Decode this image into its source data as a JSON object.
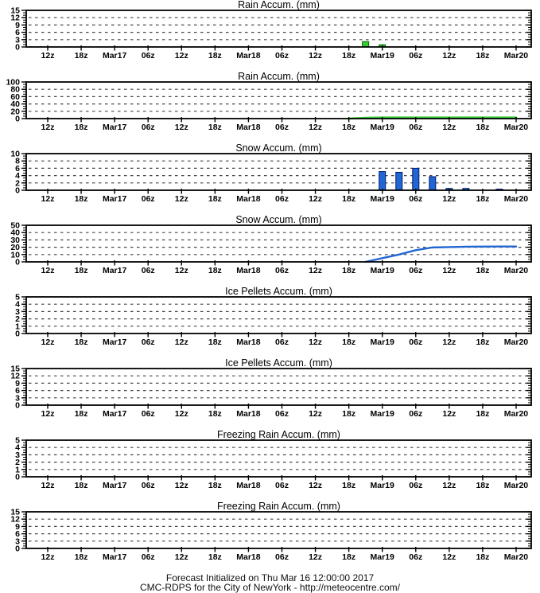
{
  "footer": {
    "line1": "Forecast Initialized on Thu Mar 16 12:00:00 2017",
    "line2": "CMC-RDPS for the City of NewYork - http://meteocentre.com/"
  },
  "x_axis": {
    "labels": [
      "12z",
      "18z",
      "Mar17",
      "06z",
      "12z",
      "18z",
      "Mar18",
      "06z",
      "12z",
      "18z",
      "Mar19",
      "06z",
      "12z",
      "18z",
      "Mar20"
    ],
    "hours_between_labels": 6,
    "start": "12z Thu Mar 16 2017",
    "end": "00z Mon Mar 20 2017"
  },
  "colors": {
    "axis": "#000000",
    "grid": "#444444",
    "rain_fill": "#33cc33",
    "rain_stroke": "#006600",
    "snow_fill": "#2166d2",
    "snow_stroke": "#001a70",
    "ice_fill": "#888888",
    "ice_stroke": "#444444",
    "frz_fill": "#888888",
    "frz_stroke": "#444444"
  },
  "chart_data": [
    {
      "name": "rain-accum-3h",
      "type": "bar",
      "title": "Rain Accum. (mm)",
      "ylim": [
        0,
        15
      ],
      "ytick_step": 3,
      "yticks": [
        0,
        3,
        6,
        9,
        12,
        15
      ],
      "grid": true,
      "color_key": "rain",
      "points": [
        [
          57,
          2.2
        ],
        [
          60,
          0.9
        ]
      ]
    },
    {
      "name": "rain-accum-total",
      "type": "line",
      "title": "Rain Accum. (mm)",
      "ylim": [
        0,
        100
      ],
      "ytick_step": 20,
      "yticks": [
        0,
        20,
        40,
        60,
        80,
        100
      ],
      "grid": true,
      "color_key": "rain",
      "points": [
        [
          54,
          0
        ],
        [
          57,
          2.2
        ],
        [
          60,
          3.1
        ],
        [
          84,
          3.1
        ]
      ]
    },
    {
      "name": "snow-accum-3h",
      "type": "bar",
      "title": "Snow Accum. (mm)",
      "ylim": [
        0,
        10
      ],
      "ytick_step": 2,
      "yticks": [
        0,
        2,
        4,
        6,
        8,
        10
      ],
      "grid": true,
      "color_key": "snow",
      "points": [
        [
          60,
          5.1
        ],
        [
          63,
          4.9
        ],
        [
          66,
          6.0
        ],
        [
          69,
          3.7
        ],
        [
          72,
          0.5
        ],
        [
          75,
          0.5
        ],
        [
          81,
          0.3
        ]
      ]
    },
    {
      "name": "snow-accum-total",
      "type": "line",
      "title": "Snow Accum. (mm)",
      "ylim": [
        0,
        50
      ],
      "ytick_step": 10,
      "yticks": [
        0,
        10,
        20,
        30,
        40,
        50
      ],
      "grid": true,
      "color_key": "snow",
      "points": [
        [
          57,
          0
        ],
        [
          60,
          5.1
        ],
        [
          63,
          10
        ],
        [
          66,
          16
        ],
        [
          69,
          19.7
        ],
        [
          72,
          20.2
        ],
        [
          75,
          20.7
        ],
        [
          81,
          21
        ],
        [
          84,
          21
        ]
      ]
    },
    {
      "name": "ice-pellets-3h",
      "type": "bar",
      "title": "Ice Pellets Accum. (mm)",
      "ylim": [
        0,
        5
      ],
      "ytick_step": 1,
      "yticks": [
        0,
        1,
        2,
        3,
        4,
        5
      ],
      "grid": true,
      "color_key": "ice",
      "points": []
    },
    {
      "name": "ice-pellets-total",
      "type": "line",
      "title": "Ice Pellets Accum. (mm)",
      "ylim": [
        0,
        15
      ],
      "ytick_step": 3,
      "yticks": [
        0,
        3,
        6,
        9,
        12,
        15
      ],
      "grid": true,
      "color_key": "ice",
      "points": []
    },
    {
      "name": "freezing-rain-3h",
      "type": "bar",
      "title": "Freezing Rain Accum. (mm)",
      "ylim": [
        0,
        5
      ],
      "ytick_step": 1,
      "yticks": [
        0,
        1,
        2,
        3,
        4,
        5
      ],
      "grid": true,
      "color_key": "frz",
      "points": []
    },
    {
      "name": "freezing-rain-total",
      "type": "line",
      "title": "Freezing Rain Accum. (mm)",
      "ylim": [
        0,
        15
      ],
      "ytick_step": 3,
      "yticks": [
        0,
        3,
        6,
        9,
        12,
        15
      ],
      "grid": true,
      "color_key": "frz",
      "points": []
    }
  ]
}
